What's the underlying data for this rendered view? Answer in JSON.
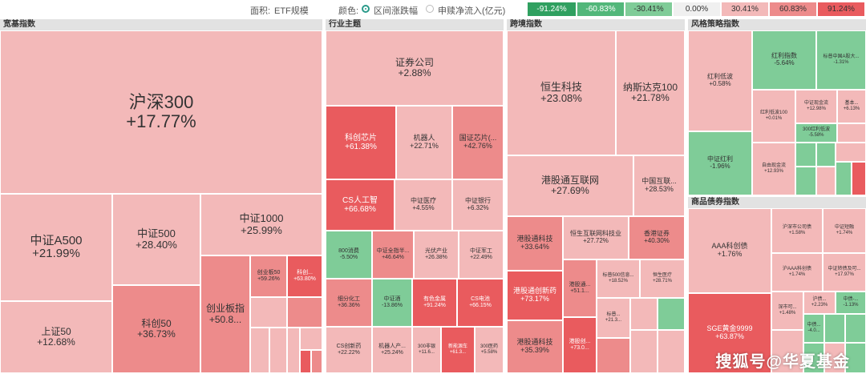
{
  "toolbar": {
    "area_label": "面积:",
    "area_value": "ETF规模",
    "color_label": "颜色:",
    "option_range": "区间涨跌幅",
    "option_flow": "申赎净流入(亿元)"
  },
  "legend": [
    "-91.24%",
    "-60.83%",
    "-30.41%",
    "0.00%",
    "30.41%",
    "60.83%",
    "91.24%"
  ],
  "colors": {
    "deep_green": "#30a060",
    "mid_green": "#52b77a",
    "light_green": "#7fcc98",
    "neutral": "#f0f0f0",
    "light_red": "#f3b9b9",
    "mid_red": "#ed8b8b",
    "deep_red": "#e95b5e"
  },
  "panels": {
    "broad": {
      "title": "宽基指数"
    },
    "industry": {
      "title": "行业主题"
    },
    "cross": {
      "title": "跨境指数"
    },
    "style": {
      "title": "风格策略指数"
    },
    "commodity": {
      "title": "商品债券指数"
    }
  },
  "tiles": {
    "hs300": {
      "name": "沪深300",
      "value": "+17.77%"
    },
    "zza500": {
      "name": "中证A500",
      "value": "+21.99%"
    },
    "zz500": {
      "name": "中证500",
      "value": "+28.40%"
    },
    "zz1000": {
      "name": "中证1000",
      "value": "+25.99%"
    },
    "sz50": {
      "name": "上证50",
      "value": "+12.68%"
    },
    "kc50": {
      "name": "科创50",
      "value": "+36.73%"
    },
    "cyb": {
      "name": "创业板指",
      "value": "+50.8..."
    },
    "cyb50": {
      "name": "创业板50",
      "value": "+59.26%"
    },
    "kcx": {
      "name": "科创...",
      "value": "+63.80%"
    },
    "zqgs": {
      "name": "证券公司",
      "value": "+2.88%"
    },
    "kcxp": {
      "name": "科创芯片",
      "value": "+61.38%"
    },
    "jqr": {
      "name": "机器人",
      "value": "+22.71%"
    },
    "gzxp": {
      "name": "国证芯片(...",
      "value": "+42.76%"
    },
    "csrgzn": {
      "name": "CS人工智",
      "value": "+66.68%"
    },
    "zzyl": {
      "name": "中证医疗",
      "value": "+4.55%"
    },
    "zzyh": {
      "name": "中证银行",
      "value": "+6.32%"
    },
    "xf800": {
      "name": "800消费",
      "value": "-5.50%"
    },
    "zzjb": {
      "name": "中证全指半...",
      "value": "+46.64%"
    },
    "gfcy": {
      "name": "光伏产业",
      "value": "+26.38%"
    },
    "zzjg": {
      "name": "中证军工",
      "value": "+22.49%"
    },
    "xfhg": {
      "name": "细分化工",
      "value": "+36.36%"
    },
    "zzj": {
      "name": "中证酒",
      "value": "-13.86%"
    },
    "ysjs": {
      "name": "有色金属",
      "value": "+91.24%"
    },
    "csdc": {
      "name": "CS电池",
      "value": "+66.15%"
    },
    "cscxy": {
      "name": "CS创新药",
      "value": "+22.22%"
    },
    "jqrcy": {
      "name": "机器人产...",
      "value": "+25.24%"
    },
    "yl300": {
      "name": "300非银",
      "value": "+11.6..."
    },
    "xnyc": {
      "name": "新能源车",
      "value": "+61.3..."
    },
    "yy300": {
      "name": "300医药",
      "value": "+5.58%"
    },
    "hskj": {
      "name": "恒生科技",
      "value": "+23.08%"
    },
    "nsdk": {
      "name": "纳斯达克100",
      "value": "+21.78%"
    },
    "ggthl": {
      "name": "港股通互联网",
      "value": "+27.69%"
    },
    "zgzq": {
      "name": "中国互联...",
      "value": "+28.53%"
    },
    "ggtkj": {
      "name": "港股通科技",
      "value": "+33.64%"
    },
    "hshl": {
      "name": "恒生互联网科技业",
      "value": "+27.72%"
    },
    "xgzq": {
      "name": "香港证券",
      "value": "+40.30%"
    },
    "ggtcxy": {
      "name": "港股通创新药",
      "value": "+73.17%"
    },
    "ggty": {
      "name": "港股通...",
      "value": "+51.1..."
    },
    "bp500": {
      "name": "标普500信息...",
      "value": "+18.52%"
    },
    "hsyl": {
      "name": "恒生医疗",
      "value": "+28.71%"
    },
    "bpx": {
      "name": "标普...",
      "value": "+21.3..."
    },
    "ggtkj2": {
      "name": "港股通科技",
      "value": "+35.39%"
    },
    "ggtc2": {
      "name": "港股创...",
      "value": "+73.0..."
    },
    "hldb": {
      "name": "红利低波",
      "value": "+0.58%"
    },
    "hlzs": {
      "name": "红利指数",
      "value": "-5.64%"
    },
    "bpzghl": {
      "name": "标普中国A股大...",
      "value": "-1.31%"
    },
    "hldb100": {
      "name": "红利低波100",
      "value": "+0.01%"
    },
    "zzxj": {
      "name": "中证现金流",
      "value": "+12.98%"
    },
    "jsk": {
      "name": "基本...",
      "value": "+6.13%"
    },
    "hl300": {
      "name": "300红利低波",
      "value": "-5.58%"
    },
    "zzhl": {
      "name": "中证红利",
      "value": "-1.96%"
    },
    "zyxj": {
      "name": "自由现金流",
      "value": "+12.93%"
    },
    "aaakcz": {
      "name": "AAA科创债",
      "value": "+1.76%"
    },
    "hskcgs": {
      "name": "沪深市公司债",
      "value": "+1.58%"
    },
    "zjkcz": {
      "name": "中证短融",
      "value": "+1.74%"
    },
    "hsaaa": {
      "name": "沪AAA科创债",
      "value": "+1.74%"
    },
    "zzdzhl": {
      "name": "中证转债及可...",
      "value": "+17.97%"
    },
    "sge": {
      "name": "SGE黄金9999",
      "value": "+63.87%"
    },
    "sscz": {
      "name": "深市可...",
      "value": "+1.48%"
    },
    "hcz": {
      "name": "沪债...",
      "value": "+2.23%"
    },
    "zjx": {
      "name": "中债-...",
      "value": "-1.13%"
    },
    "zd2": {
      "name": "中债...",
      "value": "-4.0..."
    }
  },
  "watermark": "搜狐号@华夏基金"
}
